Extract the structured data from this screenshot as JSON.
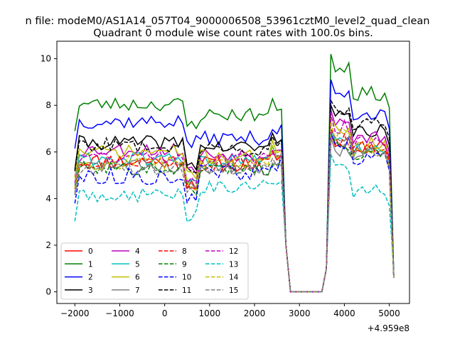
{
  "chart_data": {
    "type": "line",
    "suptitle": "n file: modeM0/AS1A14_057T04_9000006508_53961cztM0_level2_quad_clean",
    "title": "Quadrant 0 module wise count rates with 100.0s bins.",
    "xlabel": "",
    "ylabel": "",
    "x_offset_label": "+4.959e8",
    "xlim": [
      -2400,
      5450
    ],
    "ylim": [
      -0.5,
      10.75
    ],
    "xticks": [
      -2000,
      -1000,
      0,
      1000,
      2000,
      3000,
      4000,
      5000
    ],
    "yticks": [
      0,
      2,
      4,
      6,
      8,
      10
    ],
    "xtick_labels": [
      "−2000",
      "−1000",
      "0",
      "1000",
      "2000",
      "3000",
      "4000",
      "5000"
    ],
    "ytick_labels": [
      "0",
      "2",
      "4",
      "6",
      "8",
      "10"
    ],
    "grid": false,
    "legend_position": "lower-left",
    "legend_columns": 4,
    "series": [
      {
        "name": "0",
        "color": "#ff0000",
        "dash": "solid",
        "seed": 11,
        "base": 5.6,
        "amp": 0.35,
        "mid": 5.5,
        "peak": 6.8,
        "late": 6.3,
        "end": 0.6
      },
      {
        "name": "1",
        "color": "#008000",
        "dash": "solid",
        "seed": 23,
        "base": 8.05,
        "amp": 0.3,
        "mid": 7.6,
        "peak": 10.2,
        "late": 8.5,
        "end": 0.7
      },
      {
        "name": "2",
        "color": "#0000ff",
        "dash": "solid",
        "seed": 37,
        "base": 7.3,
        "amp": 0.3,
        "mid": 6.6,
        "peak": 9.1,
        "late": 7.6,
        "end": 0.7
      },
      {
        "name": "3",
        "color": "#000000",
        "dash": "solid",
        "seed": 41,
        "base": 6.4,
        "amp": 0.3,
        "mid": 6.2,
        "peak": 8.0,
        "late": 6.9,
        "end": 0.65
      },
      {
        "name": "4",
        "color": "#bf00bf",
        "dash": "solid",
        "seed": 53,
        "base": 6.1,
        "amp": 0.3,
        "mid": 5.9,
        "peak": 7.8,
        "late": 6.6,
        "end": 0.6
      },
      {
        "name": "5",
        "color": "#00bfbf",
        "dash": "solid",
        "seed": 61,
        "base": 5.7,
        "amp": 0.3,
        "mid": 5.6,
        "peak": 6.9,
        "late": 6.1,
        "end": 0.6
      },
      {
        "name": "6",
        "color": "#bfbf00",
        "dash": "solid",
        "seed": 71,
        "base": 6.0,
        "amp": 0.3,
        "mid": 5.8,
        "peak": 7.5,
        "late": 6.4,
        "end": 0.6
      },
      {
        "name": "7",
        "color": "#808080",
        "dash": "solid",
        "seed": 83,
        "base": 5.4,
        "amp": 0.3,
        "mid": 5.3,
        "peak": 6.6,
        "late": 5.9,
        "end": 0.6
      },
      {
        "name": "8",
        "color": "#ff0000",
        "dash": "dashed",
        "seed": 97,
        "base": 5.6,
        "amp": 0.3,
        "mid": 5.5,
        "peak": 7.0,
        "late": 6.2,
        "end": 0.6
      },
      {
        "name": "9",
        "color": "#008000",
        "dash": "dashed",
        "seed": 101,
        "base": 5.3,
        "amp": 0.3,
        "mid": 5.3,
        "peak": 6.7,
        "late": 5.9,
        "end": 0.6
      },
      {
        "name": "10",
        "color": "#0000ff",
        "dash": "dashed",
        "seed": 113,
        "base": 4.95,
        "amp": 0.35,
        "mid": 5.1,
        "peak": 6.8,
        "late": 5.8,
        "end": 0.6
      },
      {
        "name": "11",
        "color": "#000000",
        "dash": "dashed",
        "seed": 127,
        "base": 6.3,
        "amp": 0.3,
        "mid": 6.1,
        "peak": 8.2,
        "late": 7.2,
        "end": 0.65
      },
      {
        "name": "12",
        "color": "#bf00bf",
        "dash": "dashed",
        "seed": 131,
        "base": 5.8,
        "amp": 0.3,
        "mid": 5.7,
        "peak": 7.6,
        "late": 6.4,
        "end": 0.6
      },
      {
        "name": "13",
        "color": "#00bfbf",
        "dash": "dashed",
        "seed": 149,
        "base": 4.15,
        "amp": 0.3,
        "mid": 4.5,
        "peak": 5.9,
        "late": 4.3,
        "end": 0.9
      },
      {
        "name": "14",
        "color": "#bfbf00",
        "dash": "dashed",
        "seed": 157,
        "base": 5.55,
        "amp": 0.3,
        "mid": 5.6,
        "peak": 7.3,
        "late": 6.0,
        "end": 0.6
      },
      {
        "name": "15",
        "color": "#808080",
        "dash": "dashed",
        "seed": 163,
        "base": 5.3,
        "amp": 0.3,
        "mid": 5.3,
        "peak": 6.9,
        "late": 6.0,
        "end": 0.6
      }
    ]
  }
}
